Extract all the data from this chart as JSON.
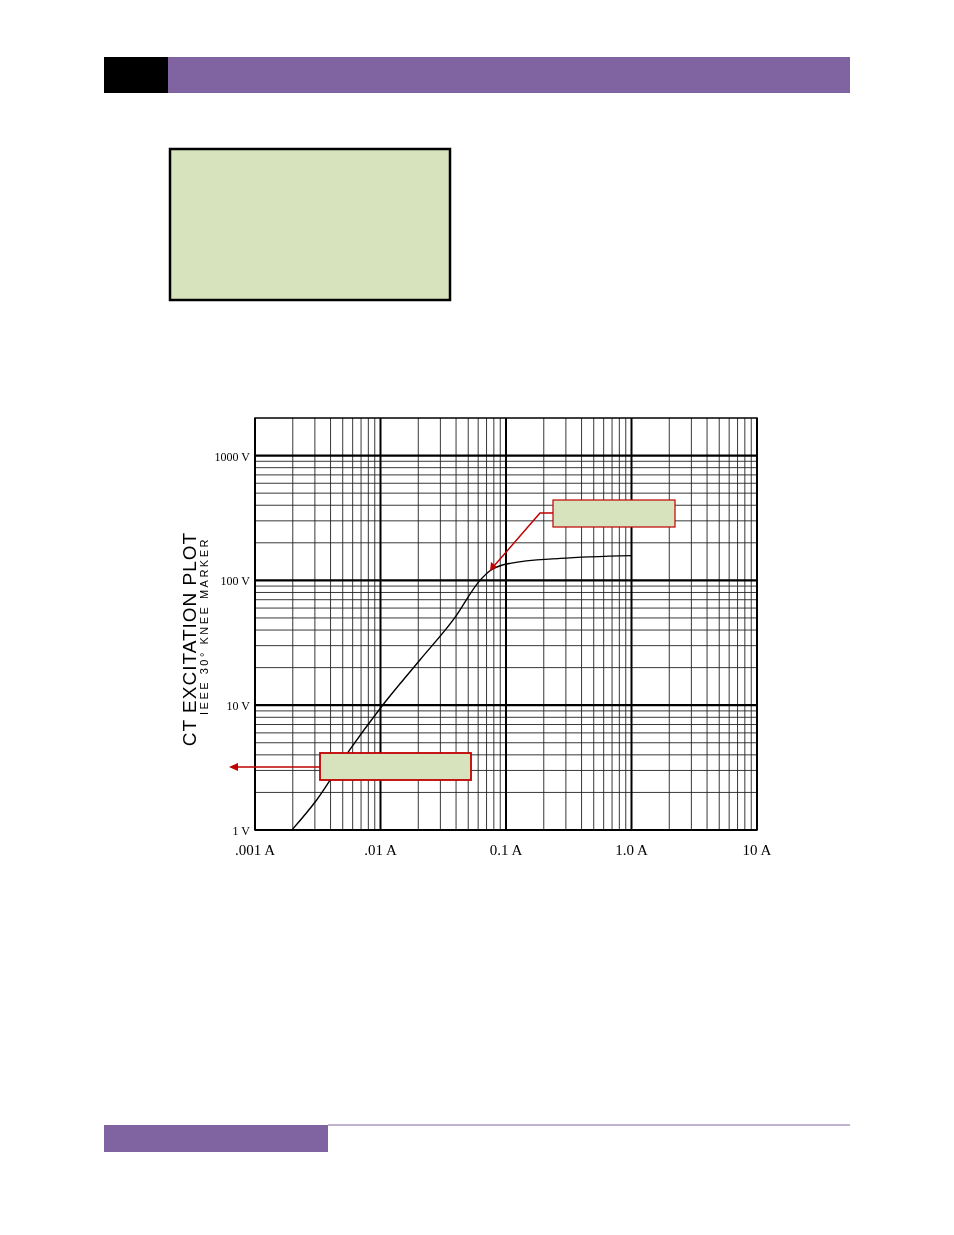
{
  "chart_data": {
    "type": "line",
    "ylabel": "CT EXCITATION PLOT",
    "annotations": [
      "IEEE 30° KNEE MARKER"
    ],
    "log": "xy",
    "grid": true,
    "marker": "none",
    "line_style": "solid",
    "x": [
      0.002,
      0.0031,
      0.0057,
      0.01,
      0.0206,
      0.039,
      0.062,
      0.075,
      0.108,
      0.27,
      1.0
    ],
    "series": [
      {
        "color": "#000000",
        "values": [
          1.02,
          1.74,
          4.4,
          9.5,
          23,
          50,
          100,
          120,
          137,
          150,
          158
        ]
      }
    ],
    "xlim": [
      0.001,
      10
    ],
    "ylim": [
      1,
      2000
    ],
    "xticks": [
      {
        "value": 0.001,
        "label": ".001 A"
      },
      {
        "value": 0.01,
        "label": ".01 A"
      },
      {
        "value": 0.1,
        "label": "0.1 A"
      },
      {
        "value": 1,
        "label": "1.0 A"
      },
      {
        "value": 10,
        "label": "10 A"
      }
    ],
    "yticks": [
      {
        "value": 1,
        "label": "1 V"
      },
      {
        "value": 10,
        "label": "10 V"
      },
      {
        "value": 100,
        "label": "100 V"
      },
      {
        "value": 1000,
        "label": "1000 V"
      }
    ]
  }
}
